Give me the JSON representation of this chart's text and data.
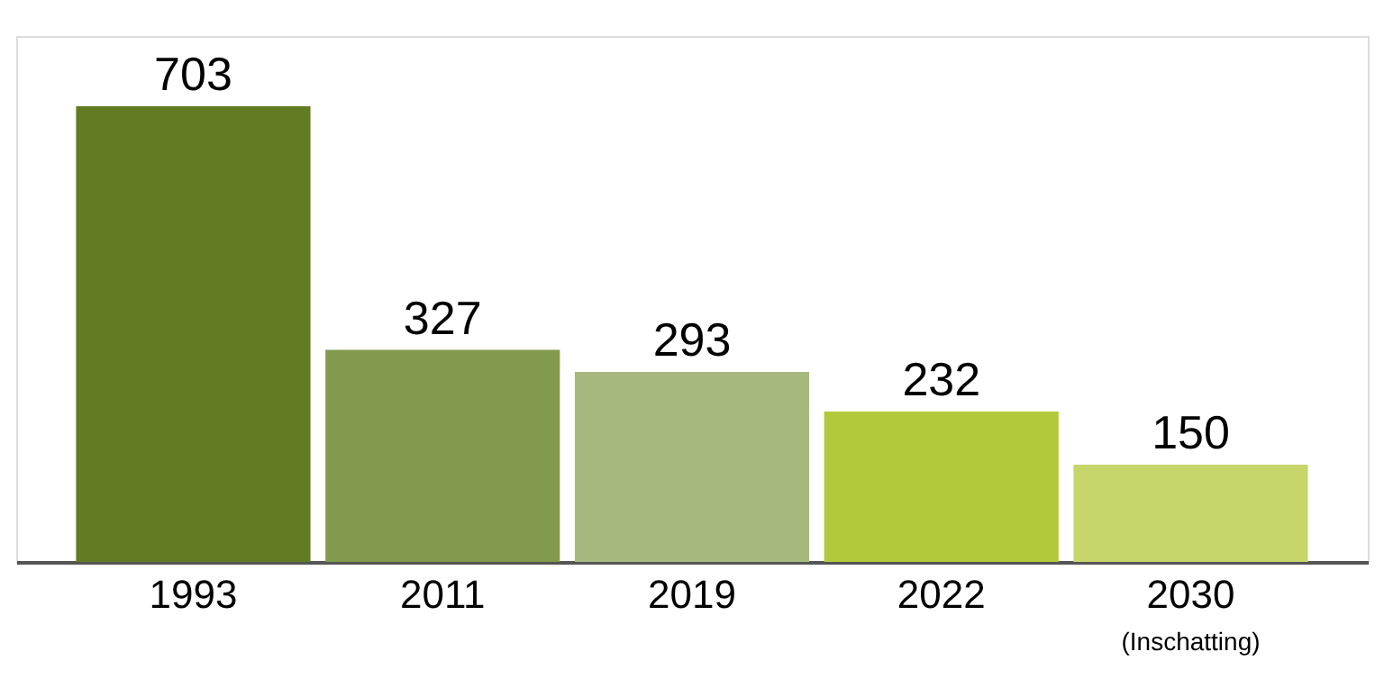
{
  "chart_data": {
    "type": "bar",
    "categories": [
      "1993",
      "2011",
      "2019",
      "2022",
      "2030"
    ],
    "values": [
      703,
      327,
      293,
      232,
      150
    ],
    "colors": [
      "#617c22",
      "#829a4b",
      "#a7b87e",
      "#b1c93a",
      "#c8d56b"
    ],
    "data_labels": true,
    "annotations": [
      "(Inschatting)"
    ]
  }
}
